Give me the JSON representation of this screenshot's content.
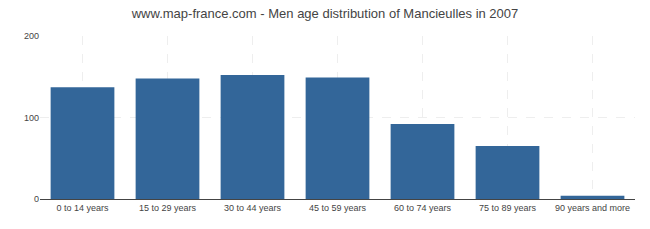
{
  "chart_data": {
    "type": "bar",
    "title": "www.map-france.com - Men age distribution of Mancieulles in 2007",
    "categories": [
      "0 to 14 years",
      "15 to 29 years",
      "30 to 44 years",
      "45 to 59 years",
      "60 to 74 years",
      "75 to 89 years",
      "90 years and more"
    ],
    "values": [
      137,
      148,
      152,
      149,
      92,
      65,
      4
    ],
    "color": "#336699",
    "ylim": [
      0,
      200
    ],
    "yticks": [
      0,
      100,
      200
    ],
    "grid": true
  }
}
